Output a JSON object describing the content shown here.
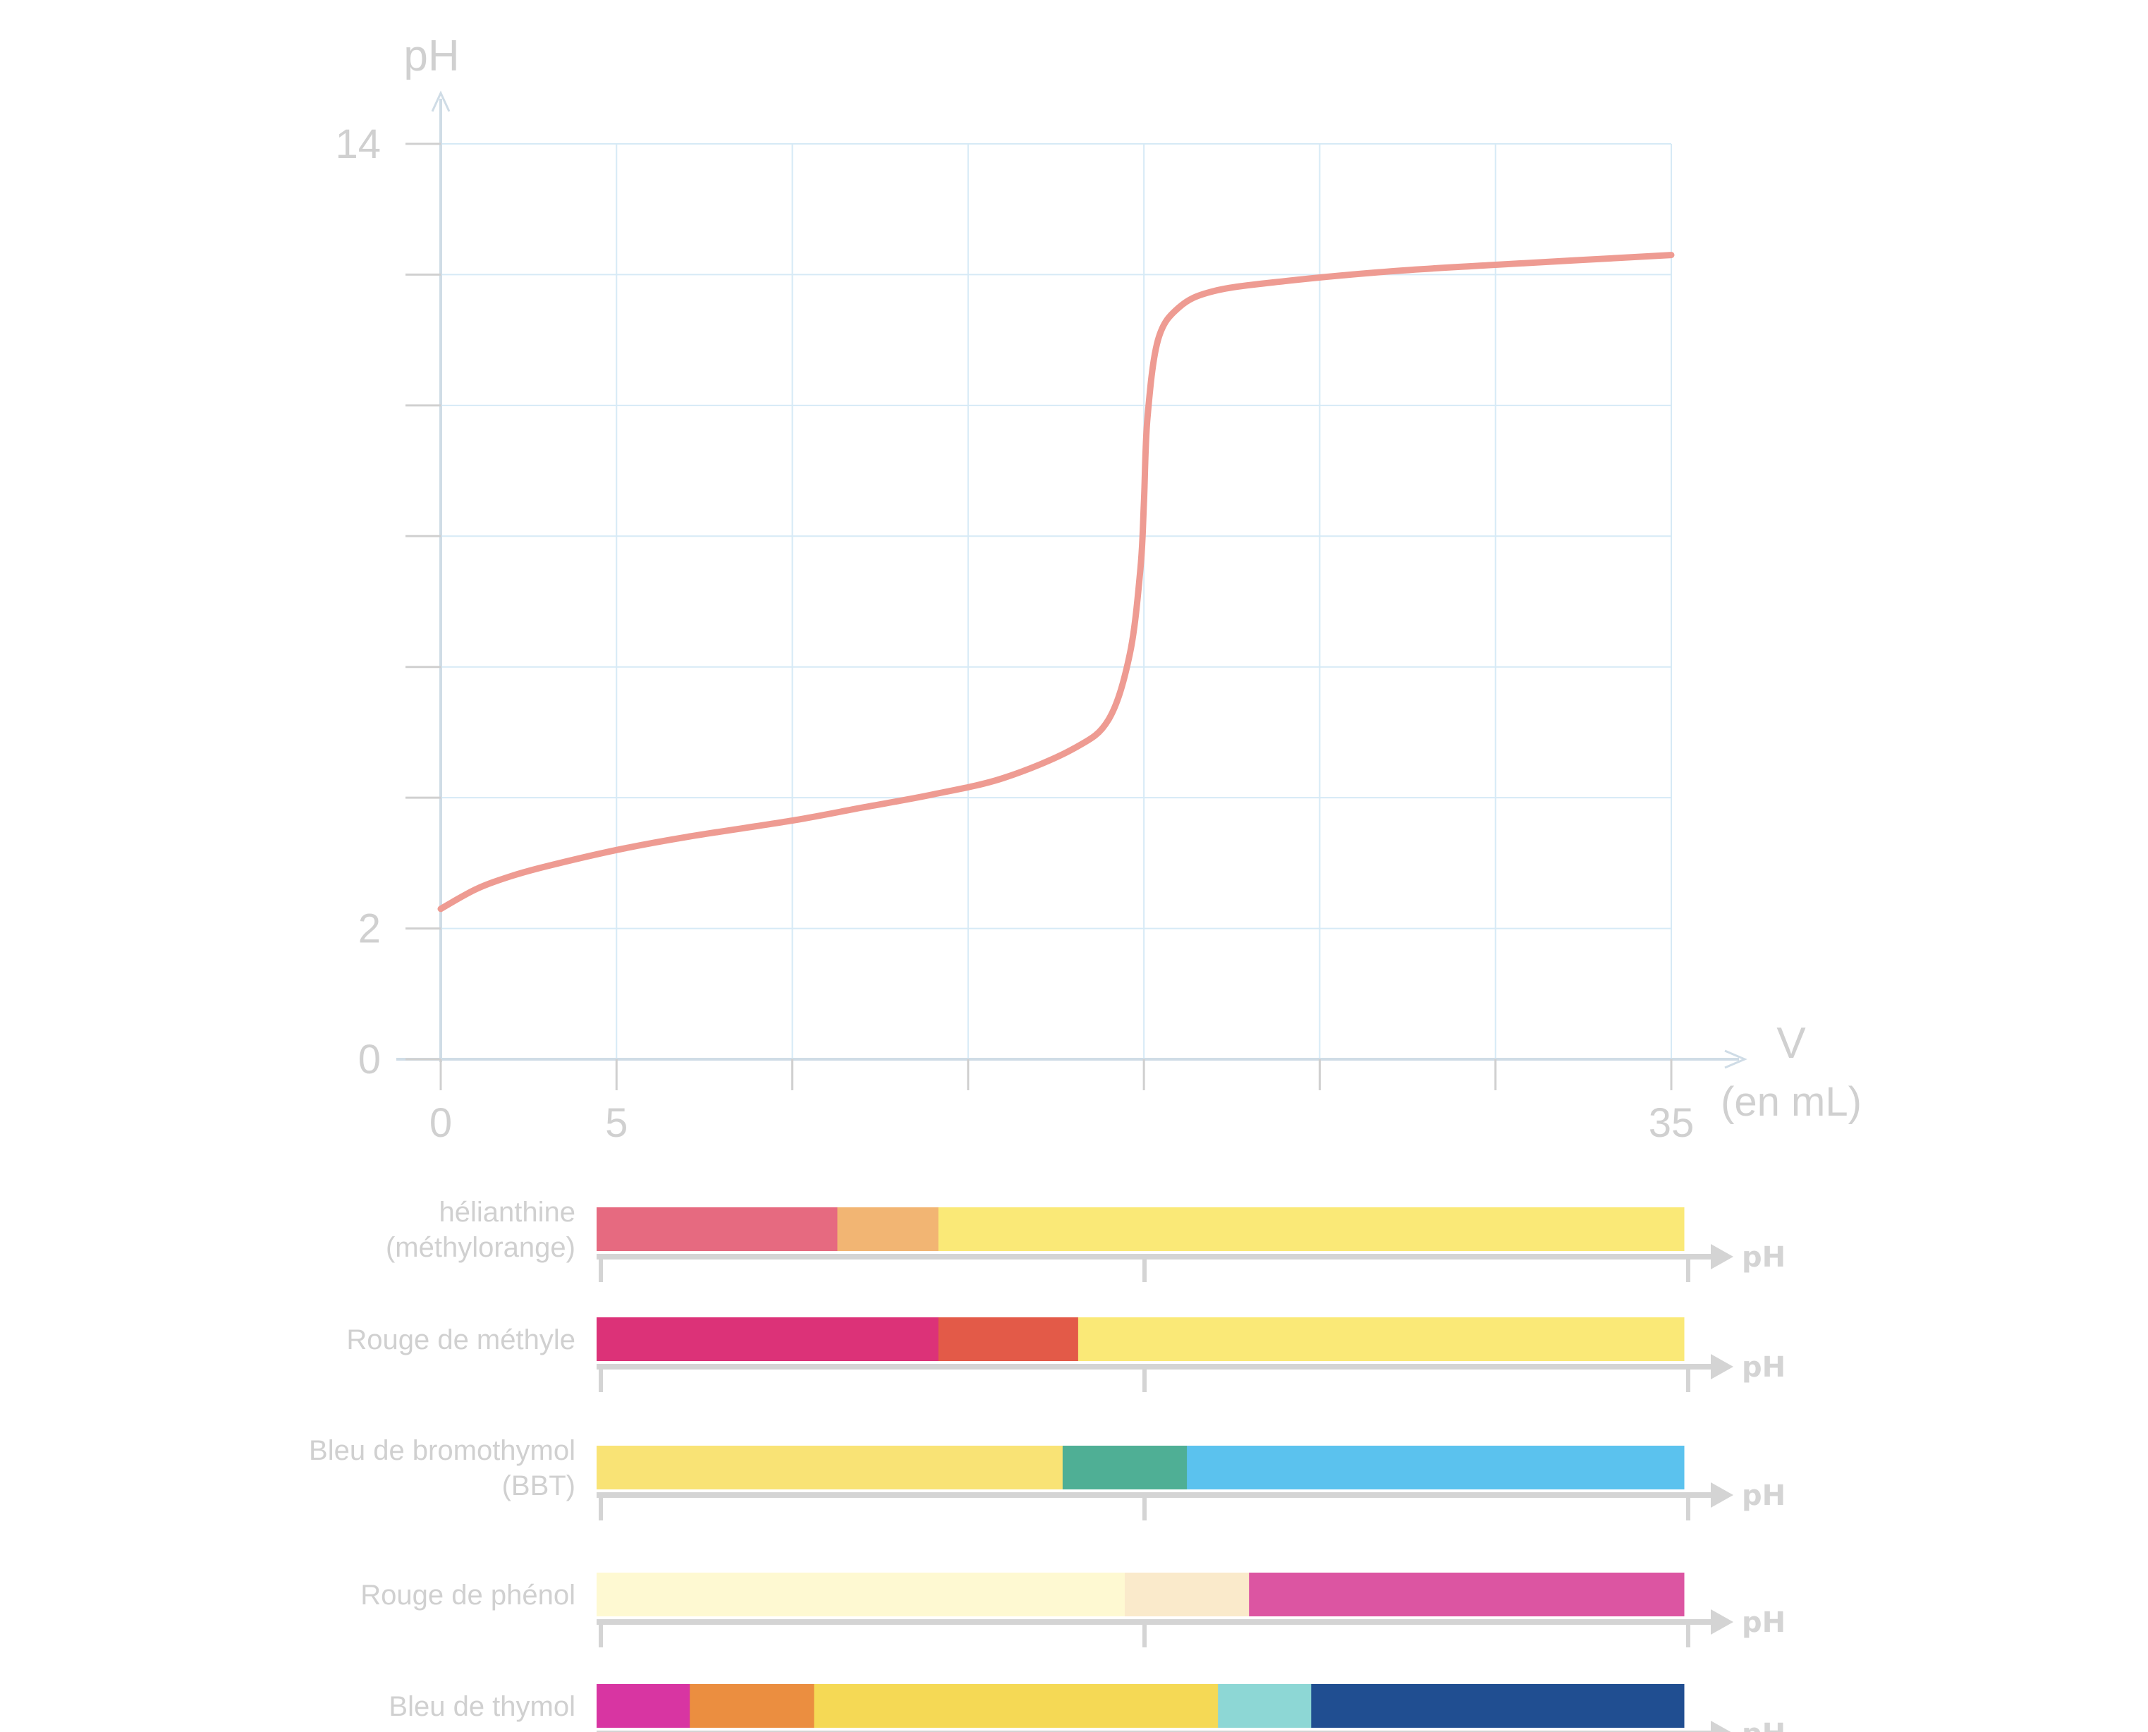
{
  "chart_data": {
    "type": "line",
    "ylabel": "pH",
    "xlabel": "V",
    "xunit": "(en mL)",
    "xlim": [
      0,
      35
    ],
    "ylim": [
      0,
      14
    ],
    "xtick_labels": [
      {
        "value": 0,
        "label": "0"
      },
      {
        "value": 5,
        "label": "5"
      },
      {
        "value": 35,
        "label": "35"
      }
    ],
    "ytick_labels": [
      {
        "value": 0,
        "label": "0"
      },
      {
        "value": 2,
        "label": "2"
      },
      {
        "value": 14,
        "label": "14"
      }
    ],
    "x_gridlines": [
      0,
      5,
      10,
      15,
      20,
      25,
      30,
      35
    ],
    "y_gridlines": [
      0,
      2,
      4,
      6,
      8,
      10,
      12,
      14
    ],
    "grid": true,
    "line_color": "#ee9b92",
    "series": [
      {
        "points": [
          [
            0,
            2.3
          ],
          [
            1,
            2.6
          ],
          [
            2,
            2.8
          ],
          [
            3,
            2.95
          ],
          [
            5,
            3.2
          ],
          [
            7,
            3.4
          ],
          [
            10,
            3.65
          ],
          [
            12,
            3.85
          ],
          [
            14,
            4.05
          ],
          [
            16,
            4.3
          ],
          [
            18,
            4.75
          ],
          [
            19,
            5.2
          ],
          [
            19.6,
            6.2
          ],
          [
            19.9,
            7.5
          ],
          [
            20.0,
            8.5
          ],
          [
            20.1,
            9.8
          ],
          [
            20.4,
            11.0
          ],
          [
            21,
            11.5
          ],
          [
            22,
            11.75
          ],
          [
            24,
            11.9
          ],
          [
            27,
            12.05
          ],
          [
            30,
            12.15
          ],
          [
            35,
            12.3
          ]
        ]
      }
    ]
  },
  "indicators": {
    "axis_label": "pH",
    "items": [
      {
        "name": "hélianthine\n(méthylorange)",
        "segments": [
          {
            "from": 0,
            "to": 3.1,
            "color": "#e66a80"
          },
          {
            "from": 3.1,
            "to": 4.4,
            "color": "#f2b573"
          },
          {
            "from": 4.4,
            "to": 14,
            "color": "#fae977"
          }
        ]
      },
      {
        "name": "Rouge de méthyle",
        "segments": [
          {
            "from": 0,
            "to": 4.4,
            "color": "#dc3278"
          },
          {
            "from": 4.4,
            "to": 6.2,
            "color": "#e35a48"
          },
          {
            "from": 6.2,
            "to": 14,
            "color": "#fae977"
          }
        ]
      },
      {
        "name": "Bleu de bromothymol\n(BBT)",
        "segments": [
          {
            "from": 0,
            "to": 6.0,
            "color": "#f9e375"
          },
          {
            "from": 6.0,
            "to": 7.6,
            "color": "#4faf95"
          },
          {
            "from": 7.6,
            "to": 14,
            "color": "#5bc2ee"
          }
        ]
      },
      {
        "name": "Rouge de phénol",
        "segments": [
          {
            "from": 0,
            "to": 6.8,
            "color": "#fef9d2"
          },
          {
            "from": 6.8,
            "to": 8.4,
            "color": "#faeacb"
          },
          {
            "from": 8.4,
            "to": 14,
            "color": "#dc55a2"
          }
        ]
      },
      {
        "name": "Bleu de thymol",
        "segments": [
          {
            "from": 0,
            "to": 1.2,
            "color": "#d835a2"
          },
          {
            "from": 1.2,
            "to": 2.8,
            "color": "#eb8e40"
          },
          {
            "from": 2.8,
            "to": 8.0,
            "color": "#f5d955"
          },
          {
            "from": 8.0,
            "to": 9.2,
            "color": "#8dd7d5"
          },
          {
            "from": 9.2,
            "to": 14,
            "color": "#204e91"
          }
        ]
      }
    ]
  },
  "colors": {
    "grid": "#d6eaf6",
    "axis": "#cfdce6",
    "ticks": "#d0d0d0",
    "text": "#d0d0d0",
    "indicator_axis": "#d4d4d4"
  }
}
